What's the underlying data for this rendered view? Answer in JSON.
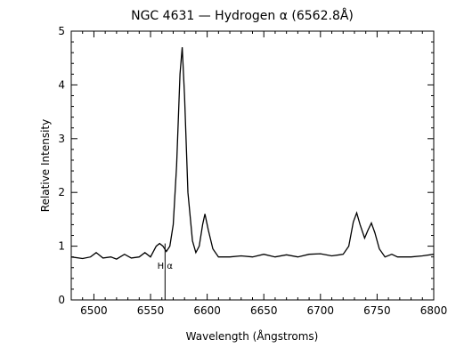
{
  "chart_data": {
    "type": "line",
    "title": "NGC 4631 — Hydrogen α (6562.8Å)",
    "xlabel": "Wavelength (Ångstroms)",
    "ylabel": "Relative Intensity",
    "xlim": [
      6480,
      6800
    ],
    "ylim": [
      0,
      5
    ],
    "xticks": [
      6500,
      6550,
      6600,
      6650,
      6700,
      6750,
      6800
    ],
    "yticks": [
      0,
      1,
      2,
      3,
      4,
      5
    ],
    "grid": false,
    "series": [
      {
        "x": [
          6480,
          6490,
          6497,
          6502,
          6508,
          6515,
          6520,
          6527,
          6533,
          6540,
          6545,
          6550,
          6555,
          6558,
          6561,
          6564,
          6567,
          6570,
          6573,
          6576,
          6578,
          6580,
          6583,
          6587,
          6590,
          6593,
          6596,
          6598,
          6601,
          6605,
          6610,
          6620,
          6630,
          6640,
          6650,
          6660,
          6670,
          6680,
          6690,
          6700,
          6710,
          6720,
          6725,
          6729,
          6732,
          6735,
          6739,
          6742,
          6745,
          6748,
          6752,
          6757,
          6763,
          6768,
          6780,
          6790,
          6800
        ],
        "y": [
          0.8,
          0.77,
          0.8,
          0.88,
          0.78,
          0.8,
          0.76,
          0.85,
          0.78,
          0.8,
          0.88,
          0.8,
          1.0,
          1.05,
          1.0,
          0.9,
          1.0,
          1.4,
          2.5,
          4.2,
          4.7,
          3.8,
          2.0,
          1.1,
          0.88,
          1.0,
          1.4,
          1.6,
          1.3,
          0.95,
          0.8,
          0.8,
          0.82,
          0.8,
          0.85,
          0.8,
          0.84,
          0.8,
          0.85,
          0.86,
          0.82,
          0.85,
          1.0,
          1.45,
          1.62,
          1.4,
          1.15,
          1.3,
          1.43,
          1.25,
          0.95,
          0.8,
          0.85,
          0.8,
          0.8,
          0.82,
          0.85
        ]
      }
    ],
    "annotations": [
      {
        "text": "H α",
        "x": 6562.8
      }
    ],
    "marker_bottom": 0,
    "marker_top": 1.05
  }
}
